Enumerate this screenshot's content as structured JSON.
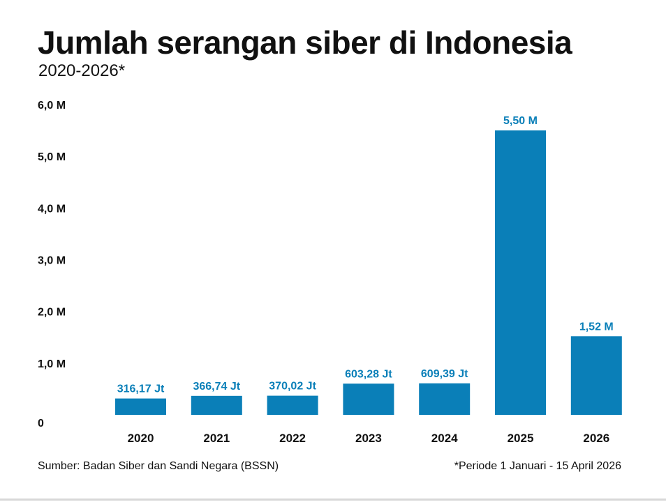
{
  "header": {
    "title": "Jumlah serangan siber di Indonesia",
    "subtitle": "2020-2026*"
  },
  "footer": {
    "source": "Sumber: Badan Siber dan Sandi Negara (BSSN)",
    "note": "*Periode 1 Januari - 15 April 2026"
  },
  "colors": {
    "bar": "#0a7fb8",
    "label": "#0a7fb8",
    "text": "#111111"
  },
  "chart_data": {
    "type": "bar",
    "categories": [
      "2020",
      "2021",
      "2022",
      "2023",
      "2024",
      "2025",
      "2026"
    ],
    "values": [
      0.31617,
      0.36674,
      0.37002,
      0.60328,
      0.60939,
      5.5,
      1.52
    ],
    "value_labels": [
      "316,17 Jt",
      "366,74 Jt",
      "370,02 Jt",
      "603,28 Jt",
      "609,39 Jt",
      "5,50 M",
      "1,52 M"
    ],
    "ylim": [
      0,
      6
    ],
    "yticks": [
      0,
      1,
      2,
      3,
      4,
      5,
      6
    ],
    "ytick_labels": [
      "0",
      "1,0 M",
      "2,0 M",
      "3,0 M",
      "4,0 M",
      "5,0 M",
      "6,0 M"
    ],
    "grid": false,
    "legend": "none"
  }
}
